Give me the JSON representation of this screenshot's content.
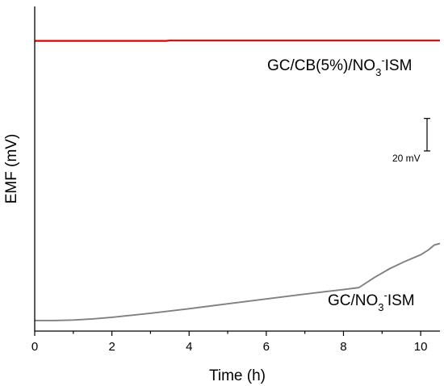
{
  "chart_data": {
    "type": "line",
    "xlabel": "Time (h)",
    "ylabel": "EMF (mV)",
    "xlim": [
      0,
      10.5
    ],
    "ylim": [
      0,
      200
    ],
    "xticks": [
      0,
      2,
      4,
      6,
      8,
      10
    ],
    "yticks_labeled": false,
    "scale_bar": {
      "label": "20 mV",
      "size_mv": 20,
      "bottom_mv": 111
    },
    "series": [
      {
        "name": "GC/CB(5%)/NO3-ISM",
        "label_main": "GC/CB(5%)/NO",
        "label_sub": "3",
        "label_sup": "-",
        "label_tail": "ISM",
        "color": "#e00000",
        "x": [
          0,
          3.4,
          3.5,
          10.5
        ],
        "y": [
          178.8,
          178.8,
          179.0,
          179.0
        ]
      },
      {
        "name": "GC/NO3-ISM",
        "label_main": "GC/NO",
        "label_sub": "3",
        "label_sup": "-",
        "label_tail": "ISM",
        "color": "#808080",
        "x": [
          0,
          0.5,
          1.0,
          1.5,
          2.0,
          3.0,
          4.0,
          5.0,
          6.0,
          7.0,
          7.5,
          8.0,
          8.4,
          8.8,
          9.2,
          9.6,
          10.0,
          10.2,
          10.35,
          10.5
        ],
        "y": [
          6.5,
          6.5,
          6.8,
          7.5,
          8.5,
          11.0,
          13.8,
          16.8,
          19.8,
          22.8,
          24.2,
          25.6,
          26.8,
          33.0,
          38.5,
          43.0,
          47.0,
          50.0,
          53.0,
          54.0
        ]
      }
    ]
  }
}
